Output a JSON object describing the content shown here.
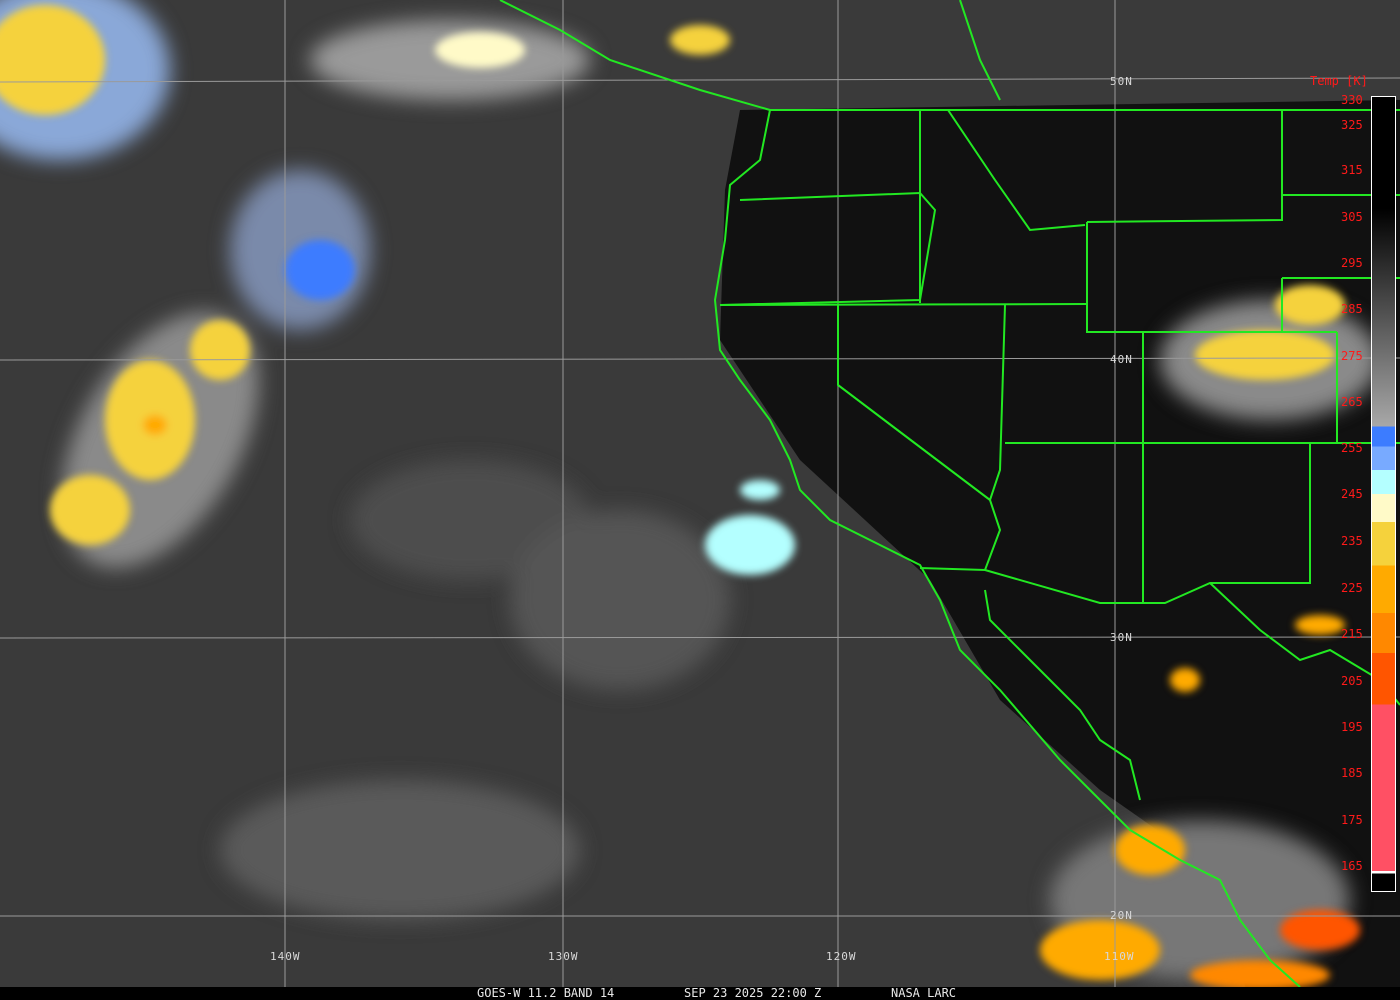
{
  "footer": {
    "satellite": "GOES-W 11.2 BAND 14",
    "datetime": "SEP 23 2025 22:00 Z",
    "credit": "NASA LARC"
  },
  "latitude_labels": [
    "50N",
    "40N",
    "30N",
    "20N"
  ],
  "longitude_labels": [
    "140W",
    "130W",
    "120W",
    "110W"
  ],
  "colorbar": {
    "title": "Temp [K]",
    "ticks": [
      "330",
      "325",
      "315",
      "305",
      "295",
      "285",
      "275",
      "265",
      "255",
      "245",
      "235",
      "225",
      "215",
      "205",
      "195",
      "185",
      "175",
      "165"
    ],
    "colors": {
      "cold_blue": "#3c7cff",
      "light_blue": "#78aaff",
      "cyan": "#b4ffff",
      "pale_yellow": "#fffac8",
      "yellow": "#f5d23c",
      "orange": "#ffaa00",
      "dark_orange": "#ff8800",
      "red_orange": "#ff5500",
      "pink": "#ff5064"
    }
  },
  "colors": {
    "borders": "#22e822",
    "grid": "#9a9a9a",
    "labels_red": "#ff1a1a"
  }
}
